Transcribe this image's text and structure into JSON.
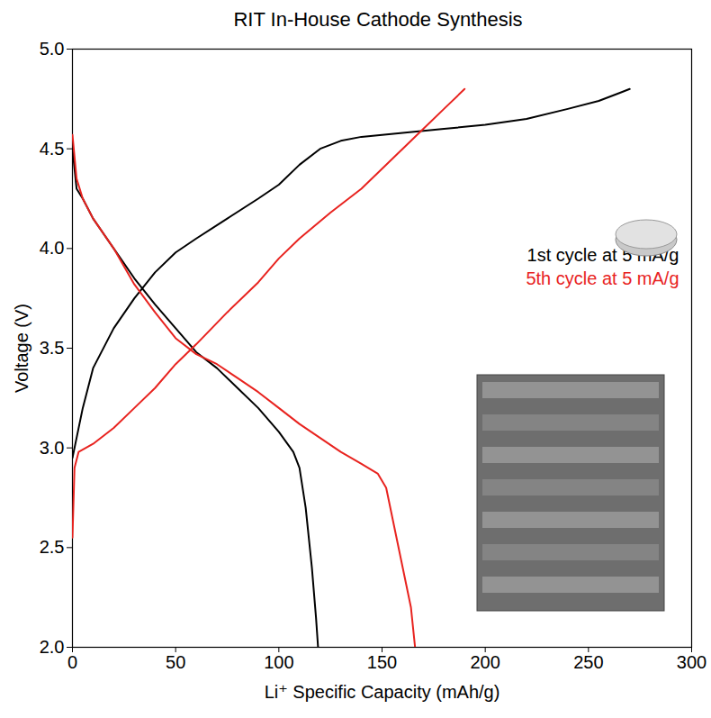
{
  "chart_data": {
    "type": "line",
    "title": "RIT In-House Cathode Synthesis",
    "x_label": "Li⁺ Specific Capacity (mAh/g)",
    "y_label": "Voltage (V)",
    "xlim": [
      0,
      300
    ],
    "xticks": [
      0,
      50,
      100,
      150,
      200,
      250,
      300
    ],
    "ylim": [
      2.0,
      5.0
    ],
    "yticks": [
      {
        "value": 2.0,
        "label": "2.0"
      },
      {
        "value": 2.5,
        "label": "2.5"
      },
      {
        "value": 3.0,
        "label": "3.0"
      },
      {
        "value": 3.5,
        "label": "3.5"
      },
      {
        "value": 4.0,
        "label": "4.0"
      },
      {
        "value": 4.5,
        "label": "4.5"
      },
      {
        "value": 5.0,
        "label": "5.0"
      }
    ],
    "grid": false,
    "legend": "right",
    "series": [
      {
        "name": "1st cycle at 5 mA/g",
        "color": "#000000",
        "x": [
          0,
          5,
          10,
          20,
          30,
          40,
          50,
          60,
          75,
          90,
          100,
          110,
          120,
          130,
          140,
          160,
          180,
          200,
          220,
          240,
          255,
          265,
          270,
          null,
          0,
          2,
          5,
          10,
          20,
          30,
          40,
          50,
          60,
          70,
          80,
          90,
          100,
          107,
          110,
          113,
          116,
          118,
          119
        ],
        "values": [
          2.95,
          3.2,
          3.4,
          3.6,
          3.75,
          3.88,
          3.98,
          4.05,
          4.15,
          4.25,
          4.32,
          4.42,
          4.5,
          4.54,
          4.56,
          4.58,
          4.6,
          4.62,
          4.65,
          4.7,
          4.74,
          4.78,
          4.8,
          null,
          4.5,
          4.3,
          4.25,
          4.15,
          4.0,
          3.85,
          3.72,
          3.6,
          3.48,
          3.4,
          3.3,
          3.2,
          3.08,
          2.98,
          2.9,
          2.7,
          2.4,
          2.15,
          2.0
        ]
      },
      {
        "name": "5th cycle at 5 mA/g",
        "color": "#e8231f",
        "x": [
          0,
          1,
          3,
          10,
          20,
          30,
          40,
          50,
          60,
          75,
          90,
          100,
          110,
          125,
          140,
          155,
          170,
          180,
          190,
          null,
          0,
          2,
          5,
          10,
          20,
          30,
          40,
          50,
          60,
          70,
          80,
          90,
          100,
          110,
          120,
          130,
          140,
          148,
          152,
          156,
          160,
          164,
          166
        ],
        "values": [
          2.55,
          2.9,
          2.98,
          3.02,
          3.1,
          3.2,
          3.3,
          3.42,
          3.52,
          3.68,
          3.83,
          3.95,
          4.05,
          4.18,
          4.3,
          4.45,
          4.6,
          4.7,
          4.8,
          null,
          4.57,
          4.35,
          4.25,
          4.15,
          4.0,
          3.82,
          3.68,
          3.55,
          3.47,
          3.42,
          3.35,
          3.28,
          3.2,
          3.12,
          3.05,
          2.98,
          2.92,
          2.87,
          2.8,
          2.6,
          2.4,
          2.2,
          2.0
        ]
      }
    ]
  }
}
